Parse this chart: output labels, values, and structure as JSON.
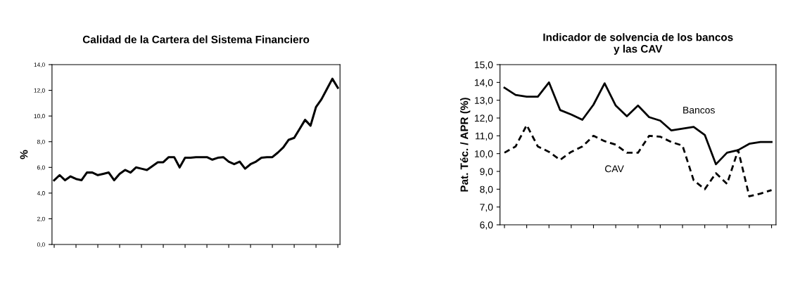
{
  "chart_data": [
    {
      "type": "line",
      "title": "Calidad de la Cartera del Sistema Financiero",
      "ylabel": "%",
      "categories": [
        null,
        null,
        null,
        null,
        null,
        null,
        null,
        null,
        null,
        null,
        null,
        null,
        null,
        null,
        null,
        null,
        null,
        null,
        null,
        null,
        null,
        null,
        null,
        null,
        null,
        null,
        null,
        null,
        null,
        null,
        null,
        null,
        null,
        null,
        null,
        null,
        null,
        null,
        null,
        null,
        null,
        null,
        null,
        null,
        null,
        null,
        null,
        null,
        null,
        null,
        null,
        null,
        null
      ],
      "series": [
        {
          "color": "#000000",
          "line_style": "solid",
          "values": [
            5.0,
            5.4,
            5.0,
            5.3,
            5.1,
            5.0,
            5.6,
            5.6,
            5.4,
            5.5,
            5.6,
            5.0,
            5.5,
            5.8,
            5.6,
            6.0,
            5.9,
            5.8,
            6.1,
            6.4,
            6.4,
            6.8,
            6.8,
            6.0,
            6.75,
            6.75,
            6.8,
            6.8,
            6.8,
            6.6,
            6.75,
            6.8,
            6.45,
            6.25,
            6.45,
            5.9,
            6.25,
            6.45,
            6.75,
            6.8,
            6.8,
            7.15,
            7.55,
            8.15,
            8.3,
            9.0,
            9.7,
            9.25,
            10.7,
            11.3,
            12.1,
            12.9,
            12.2
          ]
        }
      ],
      "ylim": [
        0,
        14
      ],
      "yticks": [
        {
          "value": 0,
          "label": "0,0"
        },
        {
          "value": 2,
          "label": "2,0"
        },
        {
          "value": 4,
          "label": "4,0"
        },
        {
          "value": 6,
          "label": "6,0"
        },
        {
          "value": 8,
          "label": "8,0"
        },
        {
          "value": 10,
          "label": "10,0"
        },
        {
          "value": 12,
          "label": "12,0"
        },
        {
          "value": 14,
          "label": "14,0"
        }
      ],
      "grid": false,
      "legend": false,
      "marker": "none"
    },
    {
      "type": "line",
      "title": "Indicador de solvencia de los bancos\ny las CAV",
      "ylabel": "Pat. Téc. / APR (%)",
      "categories": [
        null,
        null,
        null,
        null,
        null,
        null,
        null,
        null,
        null,
        null,
        null,
        null,
        null,
        null,
        null,
        null,
        null,
        null,
        null,
        null,
        null,
        null,
        null,
        null,
        null
      ],
      "series": [
        {
          "name": "Bancos",
          "color": "#000000",
          "line_style": "solid",
          "values": [
            13.7,
            13.3,
            13.2,
            13.2,
            14.0,
            12.45,
            12.2,
            11.9,
            12.75,
            13.95,
            12.7,
            12.1,
            12.7,
            12.05,
            11.85,
            11.3,
            11.4,
            11.5,
            11.05,
            9.4,
            10.05,
            10.2,
            10.55,
            10.65,
            10.65
          ]
        },
        {
          "name": "CAV",
          "color": "#000000",
          "line_style": "dashed",
          "values": [
            10.05,
            10.4,
            11.6,
            10.4,
            10.1,
            9.65,
            10.1,
            10.4,
            11.0,
            10.7,
            10.5,
            10.05,
            10.05,
            11.0,
            10.95,
            10.65,
            10.45,
            8.5,
            8.0,
            8.9,
            8.3,
            10.2,
            7.6,
            7.75,
            7.95
          ]
        }
      ],
      "ylim": [
        6,
        15
      ],
      "yticks": [
        {
          "value": 6,
          "label": "6,0"
        },
        {
          "value": 7,
          "label": "7,0"
        },
        {
          "value": 8,
          "label": "8,0"
        },
        {
          "value": 9,
          "label": "9,0"
        },
        {
          "value": 10,
          "label": "10,0"
        },
        {
          "value": 11,
          "label": "11,0"
        },
        {
          "value": 12,
          "label": "12,0"
        },
        {
          "value": 13,
          "label": "13,0"
        },
        {
          "value": 14,
          "label": "14,0"
        },
        {
          "value": 15,
          "label": "15,0"
        }
      ],
      "grid": false,
      "legend": false,
      "marker": "none"
    }
  ]
}
